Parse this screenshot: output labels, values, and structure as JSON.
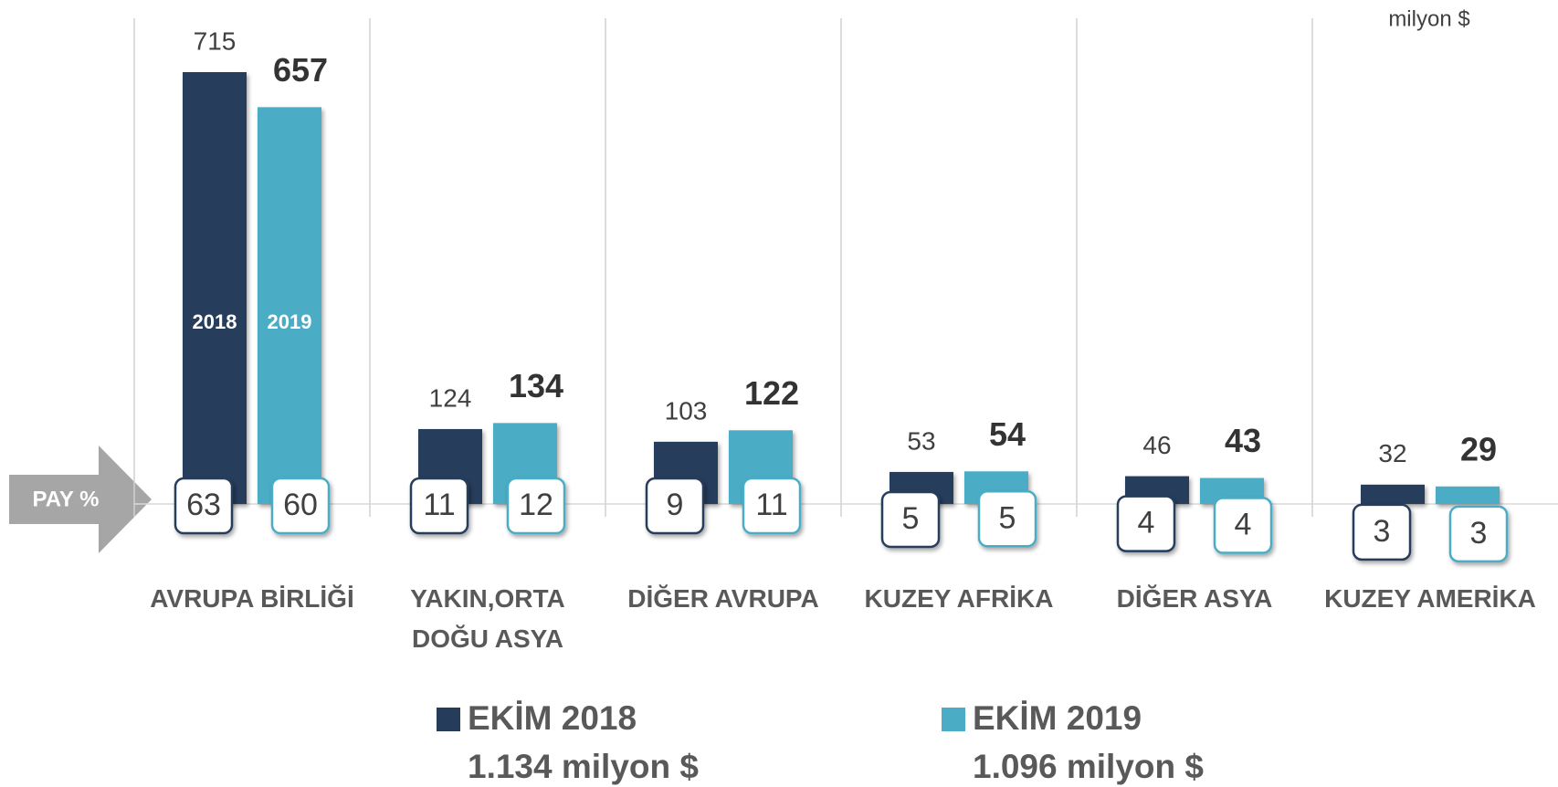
{
  "chart_data": {
    "type": "bar",
    "unit_label": "milyon $",
    "share_label": "PAY %",
    "categories": [
      "AVRUPA BİRLİĞİ",
      "YAKIN,ORTA DOĞU ASYA",
      "DİĞER AVRUPA",
      "KUZEY AFRİKA",
      "DİĞER ASYA",
      "KUZEY AMERİKA"
    ],
    "series": [
      {
        "name": "EKİM 2018",
        "total_label": "1.134 milyon $",
        "bar_label": "2018",
        "color": "#253d5b",
        "values": [
          715,
          124,
          103,
          53,
          46,
          32
        ],
        "shares": [
          63,
          11,
          9,
          5,
          4,
          3
        ]
      },
      {
        "name": "EKİM 2019",
        "total_label": "1.096 milyon $",
        "bar_label": "2019",
        "color": "#4bacc6",
        "values": [
          657,
          134,
          122,
          54,
          43,
          29
        ],
        "shares": [
          60,
          12,
          11,
          5,
          4,
          3
        ]
      }
    ]
  }
}
